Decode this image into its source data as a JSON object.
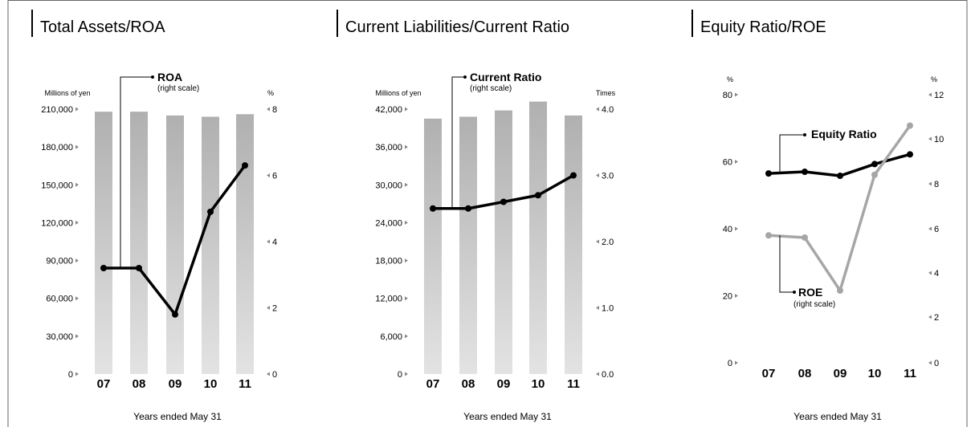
{
  "chart_data": [
    {
      "type": "bar",
      "title": "Total Assets/ROA",
      "categories": [
        "07",
        "08",
        "09",
        "10",
        "11"
      ],
      "left_unit": "Millions of yen",
      "right_unit": "%",
      "left_ylim": [
        0,
        210000
      ],
      "right_ylim": [
        0,
        8
      ],
      "left_ticks": [
        "0",
        "30,000",
        "60,000",
        "90,000",
        "120,000",
        "150,000",
        "180,000",
        "210,000"
      ],
      "right_ticks": [
        "0",
        "2",
        "4",
        "6",
        "8"
      ],
      "series": [
        {
          "name": "Total Assets",
          "kind": "bar",
          "axis": "left",
          "values": [
            208000,
            208000,
            205000,
            204000,
            206000
          ]
        },
        {
          "name": "ROA",
          "kind": "line",
          "axis": "right",
          "note": "(right scale)",
          "values": [
            3.2,
            3.2,
            1.8,
            4.9,
            6.3
          ]
        }
      ],
      "xlabel": "Years ended May 31"
    },
    {
      "type": "bar",
      "title": "Current Liabilities/Current Ratio",
      "categories": [
        "07",
        "08",
        "09",
        "10",
        "11"
      ],
      "left_unit": "Millions of yen",
      "right_unit": "Times",
      "left_ylim": [
        0,
        42000
      ],
      "right_ylim": [
        0,
        4.0
      ],
      "left_ticks": [
        "0",
        "6,000",
        "12,000",
        "18,000",
        "24,000",
        "30,000",
        "36,000",
        "42,000"
      ],
      "right_ticks": [
        "0.0",
        "1.0",
        "2.0",
        "3.0",
        "4.0"
      ],
      "series": [
        {
          "name": "Current Liabilities",
          "kind": "bar",
          "axis": "left",
          "values": [
            40500,
            40800,
            41800,
            43200,
            41000
          ]
        },
        {
          "name": "Current Ratio",
          "kind": "line",
          "axis": "right",
          "note": "(right scale)",
          "values": [
            2.5,
            2.5,
            2.6,
            2.7,
            3.0
          ]
        }
      ],
      "xlabel": "Years ended May 31"
    },
    {
      "type": "line",
      "title": "Equity Ratio/ROE",
      "categories": [
        "07",
        "08",
        "09",
        "10",
        "11"
      ],
      "left_unit": "%",
      "right_unit": "%",
      "left_ylim": [
        0,
        80
      ],
      "right_ylim": [
        0,
        12
      ],
      "left_ticks": [
        "0",
        "20",
        "40",
        "60",
        "80"
      ],
      "right_ticks": [
        "0",
        "2",
        "4",
        "6",
        "8",
        "10",
        "12"
      ],
      "series": [
        {
          "name": "Equity Ratio",
          "kind": "line",
          "axis": "left",
          "color": "#000000",
          "values": [
            56.5,
            57,
            55.8,
            59.3,
            62.2
          ]
        },
        {
          "name": "ROE",
          "kind": "line",
          "axis": "right",
          "color": "#a6a6a6",
          "note": "(right scale)",
          "values": [
            5.7,
            5.6,
            3.2,
            8.4,
            10.6
          ]
        }
      ],
      "xlabel": "Years ended May 31"
    }
  ]
}
